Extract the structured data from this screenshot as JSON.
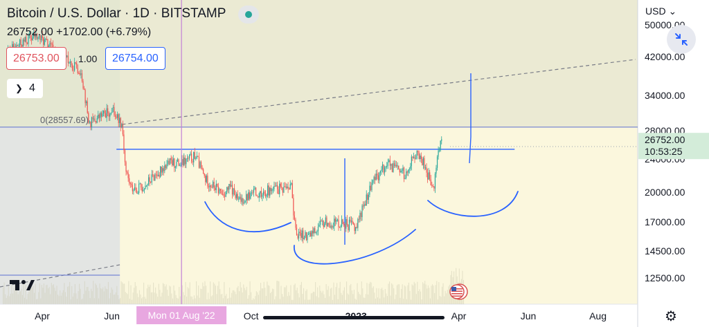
{
  "header": {
    "symbol_title": "Bitcoin / U.S. Dollar · 1D · BITSTAMP",
    "last_price_change": "26752.00 +1702.00 (+6.79%)",
    "status_dot_color": "#26a69a"
  },
  "trading": {
    "bid_label": "26753.00",
    "spread_label": "1.00",
    "ask_label": "26754.00",
    "quantity_label": "4",
    "bid_color": "#e0535d",
    "ask_color": "#2962ff"
  },
  "price_axis": {
    "currency_label": "USD",
    "tick_labels": [
      "50000.00",
      "42000.00",
      "34000.00",
      "28000.00",
      "24000.00",
      "20000.00",
      "17000.00",
      "14500.00",
      "12500.00"
    ],
    "last_price_label": "26752.00",
    "countdown_label": "10:53:25"
  },
  "time_axis": {
    "tick_labels": [
      "Apr",
      "Jun",
      "Aug",
      "Oct",
      "2023",
      "Apr",
      "Jun",
      "Aug"
    ],
    "crosshair_label": "Mon 01 Aug '22"
  },
  "drawings": {
    "fib_label": "0(28557.69)",
    "line_color": "#2962ff",
    "crosshair_color": "#c27fd6"
  },
  "icons": {
    "fullscreen": "collapse-arrows-icon",
    "settings": "gear-icon",
    "logo": "tradingview-logo-icon",
    "events": "us-flag-event-icon"
  },
  "chart_data": {
    "type": "candlestick",
    "title": "Bitcoin / U.S. Dollar · 1D · BITSTAMP",
    "xlabel": "",
    "ylabel": "",
    "x_range": [
      "2022-03-01",
      "2023-08-31"
    ],
    "y_scale": "log",
    "grid": false,
    "last_price": 26752.0,
    "change_abs": 1702.0,
    "change_pct": 6.79,
    "series": [
      {
        "name": "",
        "kind": "close_path",
        "x": [
          "2022-03-01",
          "2022-03-25",
          "2022-04-01",
          "2022-04-20",
          "2022-05-05",
          "2022-05-12",
          "2022-05-20",
          "2022-06-01",
          "2022-06-10",
          "2022-06-13",
          "2022-06-18",
          "2022-06-28",
          "2022-07-08",
          "2022-07-20",
          "2022-08-01",
          "2022-08-13",
          "2022-08-22",
          "2022-09-06",
          "2022-09-13",
          "2022-09-20",
          "2022-10-05",
          "2022-10-25",
          "2022-11-05",
          "2022-11-09",
          "2022-11-21",
          "2022-12-05",
          "2022-12-20",
          "2023-01-01",
          "2023-01-14",
          "2023-01-28",
          "2023-02-14",
          "2023-02-20",
          "2023-03-01",
          "2023-03-10",
          "2023-03-13",
          "2023-03-17"
        ],
        "y": [
          43000,
          47000,
          46000,
          41500,
          39000,
          29000,
          30000,
          31500,
          29000,
          22500,
          20400,
          20500,
          21800,
          23500,
          23300,
          24500,
          21400,
          19800,
          20500,
          19000,
          20000,
          20300,
          21000,
          16000,
          15800,
          17000,
          16900,
          16550,
          20800,
          23400,
          22000,
          24900,
          23600,
          20000,
          24200,
          26752
        ]
      }
    ],
    "horizontal_lines": [
      {
        "label": "0(28557.69)",
        "value": 28557.69
      },
      {
        "label": "",
        "value": 25300
      }
    ],
    "crosshair": {
      "x": "2022-08-01",
      "label": "Mon 01 Aug '22"
    }
  }
}
